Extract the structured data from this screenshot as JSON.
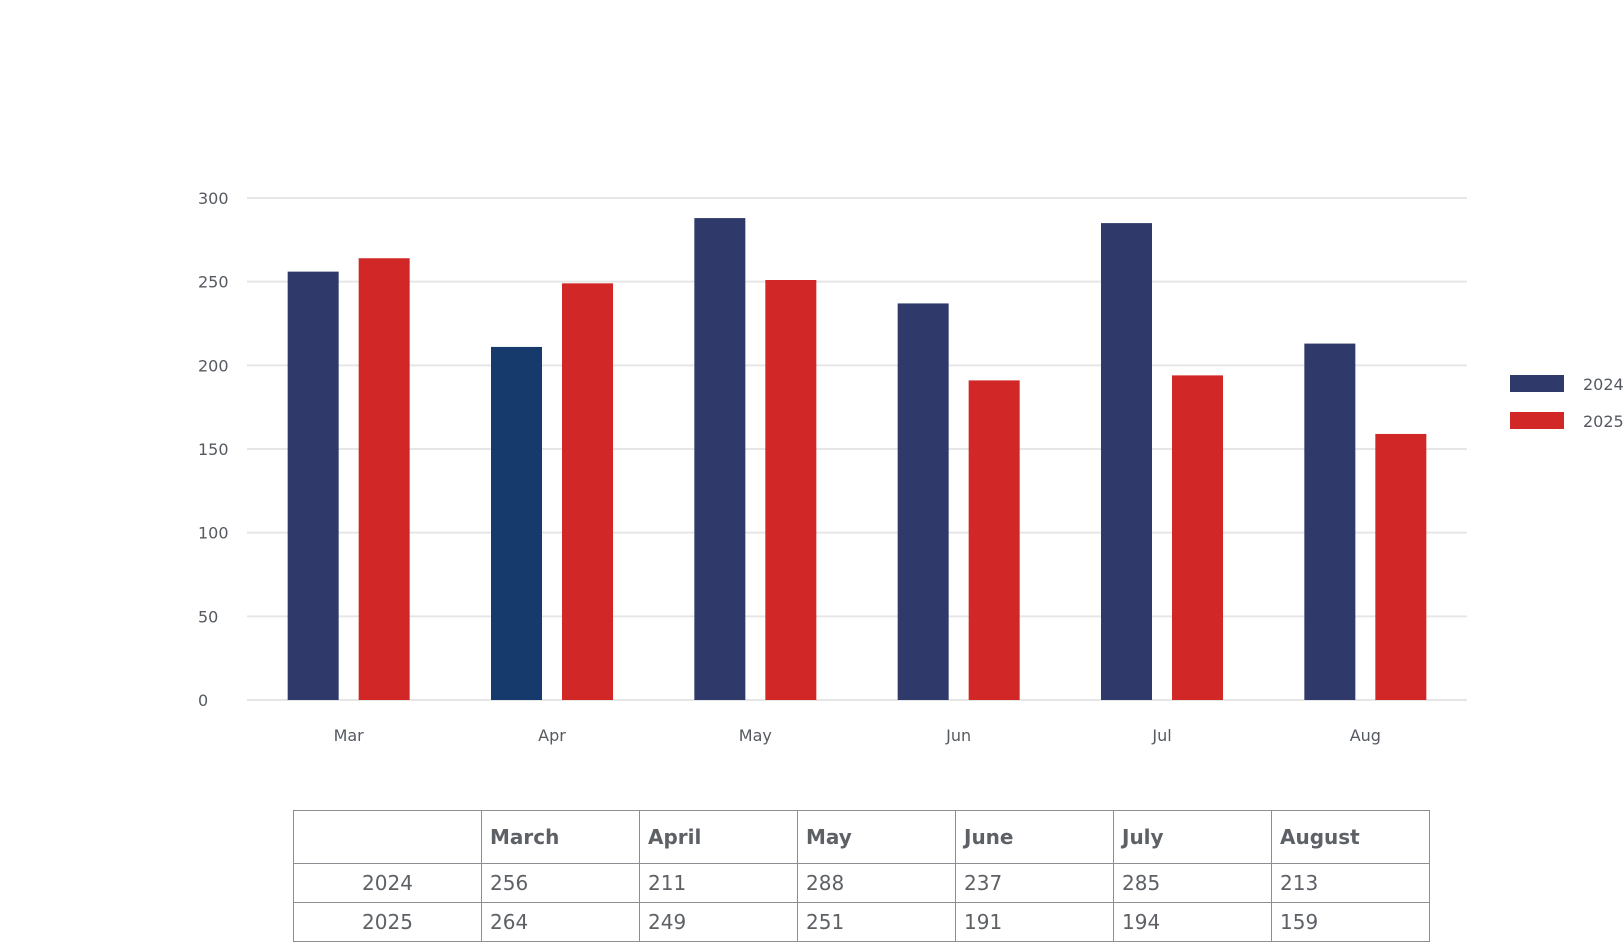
{
  "chart_data": {
    "type": "bar",
    "categories": [
      "Mar",
      "Apr",
      "May",
      "Jun",
      "Jul",
      "Aug"
    ],
    "series": [
      {
        "name": "2024",
        "values": [
          256,
          211,
          288,
          237,
          285,
          213
        ],
        "color": "#2f3a6b",
        "highlight_color": "#173a6c"
      },
      {
        "name": "2025",
        "values": [
          264,
          249,
          251,
          191,
          194,
          159
        ],
        "color": "#d12727"
      }
    ],
    "ylim": [
      0,
      300
    ],
    "yticks": [
      0,
      50,
      100,
      150,
      200,
      250,
      300
    ],
    "grid": true,
    "legend": "right",
    "gridline_color": "#e6e6e6"
  },
  "table": {
    "columns": [
      "",
      "March",
      "April",
      "May",
      "June",
      "July",
      "August"
    ],
    "rows": [
      {
        "label": "2024",
        "values": [
          "256",
          "211",
          "288",
          "237",
          "285",
          "213"
        ]
      },
      {
        "label": "2025",
        "values": [
          "264",
          "249",
          "251",
          "191",
          "194",
          "159"
        ]
      }
    ]
  }
}
